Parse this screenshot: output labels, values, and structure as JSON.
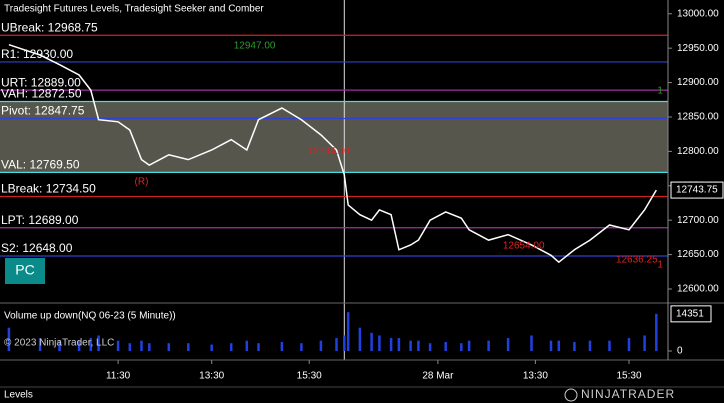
{
  "chart_data": [
    {
      "type": "line",
      "title": "Tradesight Futures Levels, Tradesight Seeker and Comber",
      "color": "#ffffff",
      "x": [
        1,
        9,
        14,
        19,
        22,
        24,
        29,
        32,
        35,
        37,
        42,
        47,
        53,
        58,
        62,
        65,
        71,
        76,
        81,
        85,
        87,
        88,
        91,
        94,
        96,
        99,
        101,
        104,
        106,
        109,
        113,
        117,
        119,
        124,
        129,
        135,
        140,
        142,
        146,
        150,
        155,
        160,
        164,
        167
      ],
      "values": [
        12955,
        12940,
        12926,
        12911,
        12889,
        12846,
        12843,
        12831,
        12788,
        12780,
        12795,
        12788,
        12802,
        12817,
        12802,
        12846,
        12863,
        12846,
        12824,
        12802,
        12766,
        12722,
        12708,
        12700,
        12715,
        12708,
        12657,
        12664,
        12671,
        12700,
        12712,
        12703,
        12686,
        12671,
        12679,
        12664,
        12649,
        12639,
        12657,
        12671,
        12693,
        12686,
        12715,
        12743.75
      ],
      "xlim": [
        0,
        170
      ],
      "xticks": [
        {
          "value": 29,
          "label": "11:30"
        },
        {
          "value": 53,
          "label": "13:30"
        },
        {
          "value": 78,
          "label": "15:30"
        },
        {
          "value": 111,
          "label": "28 Mar"
        },
        {
          "value": 136,
          "label": "13:30"
        },
        {
          "value": 160,
          "label": "15:30"
        }
      ],
      "session_break": 87,
      "ylim": [
        12584,
        13020
      ],
      "yticks": [
        {
          "value": 12600,
          "label": "12600.00"
        },
        {
          "value": 12650,
          "label": "12650.00"
        },
        {
          "value": 12700,
          "label": "12700.00"
        },
        {
          "value": 12750,
          "label": "12750.00"
        },
        {
          "value": 12800,
          "label": "12800.00"
        },
        {
          "value": 12850,
          "label": "12850.00"
        },
        {
          "value": 12900,
          "label": "12900.00"
        },
        {
          "value": 12950,
          "label": "12950.00"
        },
        {
          "value": 13000,
          "label": "13000.00"
        }
      ],
      "value_area": {
        "high": 12872.5,
        "low": 12769.5,
        "color": "#56564c"
      },
      "levels": [
        {
          "label": "UBreak: 12968.75",
          "value": 12968.75,
          "color": "#d02020"
        },
        {
          "label": "R1: 12930.00",
          "value": 12930,
          "color": "#3040d0"
        },
        {
          "label": "URT: 12889.00",
          "value": 12889,
          "color": "#a030a0"
        },
        {
          "label": "VAH: 12872.50",
          "value": 12872.5,
          "color": "#40e0e0"
        },
        {
          "label": "Pivot: 12847.75",
          "value": 12847.75,
          "color": "#3040d0"
        },
        {
          "label": "VAL: 12769.50",
          "value": 12769.5,
          "color": "#40e0e0"
        },
        {
          "label": "LBreak: 12734.50",
          "value": 12734.5,
          "color": "#d02020"
        },
        {
          "label": "LPT: 12689.00",
          "value": 12689,
          "color": "#a030a0"
        },
        {
          "label": "S2: 12648.00",
          "value": 12648,
          "color": "#3040d0"
        }
      ],
      "annotations": [
        {
          "text": "12947.00",
          "x": 64,
          "y": 12953,
          "color": "#2a9a2a"
        },
        {
          "text": "12794.00",
          "x": 83,
          "y": 12800,
          "color": "#e02020"
        },
        {
          "text": "12654.00",
          "x": 133,
          "y": 12663,
          "color": "#e02020"
        },
        {
          "text": "12636.25",
          "x": 162,
          "y": 12642,
          "color": "#e02020"
        },
        {
          "text": "(R)",
          "x": 35,
          "y": 12756,
          "color": "#e02020"
        },
        {
          "text": "1",
          "x": 168,
          "y": 12888,
          "color": "#2a9a2a"
        },
        {
          "text": "1",
          "x": 168,
          "y": 12635,
          "color": "#e02020"
        }
      ]
    },
    {
      "type": "bar",
      "title": "Volume up down(NQ 06-23 (5 Minute))",
      "color": "#2040e0",
      "x": [
        1,
        9,
        14,
        19,
        22,
        24,
        29,
        32,
        35,
        37,
        42,
        47,
        53,
        58,
        62,
        65,
        71,
        76,
        81,
        85,
        87,
        88,
        91,
        94,
        96,
        99,
        101,
        104,
        106,
        109,
        113,
        117,
        119,
        124,
        129,
        135,
        140,
        142,
        146,
        150,
        155,
        160,
        164,
        167
      ],
      "values": [
        9000,
        5000,
        4000,
        4000,
        5000,
        6000,
        4000,
        3000,
        4000,
        3000,
        3000,
        3000,
        2500,
        3000,
        4000,
        3000,
        3500,
        3000,
        4000,
        5000,
        6000,
        15000,
        9000,
        7000,
        6000,
        5000,
        5000,
        4000,
        4000,
        3000,
        3500,
        3000,
        4000,
        4000,
        5000,
        6000,
        4000,
        4000,
        3500,
        4000,
        4000,
        5000,
        6000,
        14351
      ],
      "xlim": [
        0,
        170
      ],
      "ylim": [
        0,
        17000
      ],
      "yticks": [
        0
      ]
    }
  ],
  "ui": {
    "pc_button": "PC",
    "copyright": "© 2023 NinjaTrader, LLC",
    "tab": "Levels",
    "logo": "NINJATRADER"
  }
}
